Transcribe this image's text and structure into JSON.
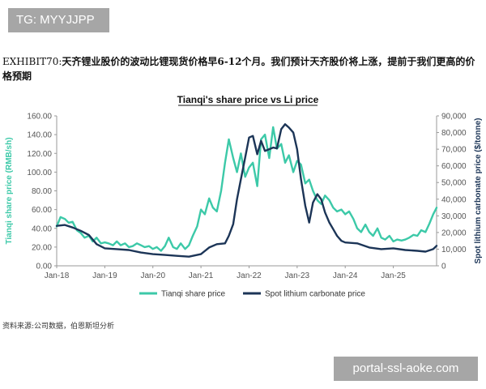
{
  "watermark_top": "TG: MYYJJPP",
  "watermark_bottom": "portal-ssl-aoke.com",
  "exhibit": {
    "prefix": "EXHIBIT70:",
    "text": "天齐锂业股价的波动比锂现货价格早6-12个月。我们预计天齐股价将上涨，提前于我们更高的价格预期"
  },
  "source": "资料来源:公司数据，伯恩斯坦分析",
  "colors": {
    "tianqi": "#3cc9a8",
    "lithium": "#1c3557",
    "axis_left": "#3cc9a8",
    "axis_right": "#1c3557"
  },
  "chart_data": {
    "type": "line",
    "title": "Tianqi's share price vs Li price",
    "x_ticks": [
      "Jan-18",
      "Jan-19",
      "Jan-20",
      "Jan-21",
      "Jan-22",
      "Jan-23",
      "Jan-24",
      "Jan-25"
    ],
    "xlim": [
      2018.0,
      2025.9
    ],
    "y_left": {
      "label": "Tianqi share price (RMB/sh)",
      "lim": [
        0,
        160
      ],
      "ticks": [
        "0.00",
        "20.00",
        "40.00",
        "60.00",
        "80.00",
        "100.00",
        "120.00",
        "140.00",
        "160.00"
      ]
    },
    "y_right": {
      "label": "Spot lithium carbonate price ($/tonne)",
      "lim": [
        0,
        90000
      ],
      "ticks": [
        "0",
        "10,000",
        "20,000",
        "30,000",
        "40,000",
        "50,000",
        "60,000",
        "70,000",
        "80,000",
        "90,000"
      ]
    },
    "legend_position": "bottom",
    "series": [
      {
        "name": "Tianqi share price",
        "axis": "left",
        "x": [
          2018.0,
          2018.08,
          2018.17,
          2018.25,
          2018.33,
          2018.42,
          2018.5,
          2018.58,
          2018.67,
          2018.75,
          2018.83,
          2018.92,
          2019.0,
          2019.08,
          2019.17,
          2019.25,
          2019.33,
          2019.42,
          2019.5,
          2019.58,
          2019.67,
          2019.75,
          2019.83,
          2019.92,
          2020.0,
          2020.08,
          2020.17,
          2020.25,
          2020.33,
          2020.42,
          2020.5,
          2020.58,
          2020.67,
          2020.75,
          2020.83,
          2020.92,
          2021.0,
          2021.08,
          2021.17,
          2021.25,
          2021.33,
          2021.42,
          2021.5,
          2021.58,
          2021.67,
          2021.75,
          2021.83,
          2021.92,
          2022.0,
          2022.08,
          2022.17,
          2022.25,
          2022.33,
          2022.42,
          2022.5,
          2022.58,
          2022.67,
          2022.75,
          2022.83,
          2022.92,
          2023.0,
          2023.08,
          2023.17,
          2023.25,
          2023.33,
          2023.42,
          2023.5,
          2023.58,
          2023.67,
          2023.75,
          2023.83,
          2023.92,
          2024.0,
          2024.08,
          2024.17,
          2024.25,
          2024.33,
          2024.42,
          2024.5,
          2024.58,
          2024.67,
          2024.75,
          2024.83,
          2024.92,
          2025.0,
          2025.08,
          2025.17,
          2025.25,
          2025.33,
          2025.42,
          2025.5,
          2025.58,
          2025.67,
          2025.75,
          2025.83,
          2025.9
        ],
        "y": [
          42,
          52,
          50,
          46,
          47,
          38,
          35,
          30,
          32,
          26,
          30,
          24,
          25,
          24,
          22,
          26,
          22,
          24,
          20,
          21,
          24,
          22,
          20,
          21,
          18,
          20,
          16,
          21,
          30,
          20,
          18,
          24,
          18,
          22,
          32,
          42,
          60,
          55,
          72,
          62,
          58,
          80,
          110,
          135,
          115,
          100,
          120,
          95,
          105,
          110,
          85,
          135,
          140,
          115,
          148,
          125,
          130,
          110,
          118,
          100,
          112,
          108,
          88,
          92,
          80,
          70,
          66,
          75,
          70,
          62,
          58,
          60,
          55,
          58,
          50,
          40,
          36,
          44,
          36,
          32,
          40,
          30,
          28,
          32,
          26,
          28,
          27,
          28,
          30,
          33,
          32,
          38,
          36,
          45,
          55,
          62
        ]
      },
      {
        "name": "Spot lithium carbonate price",
        "axis": "right",
        "x": [
          2018.0,
          2018.17,
          2018.33,
          2018.5,
          2018.67,
          2018.83,
          2019.0,
          2019.25,
          2019.5,
          2019.75,
          2020.0,
          2020.25,
          2020.5,
          2020.75,
          2021.0,
          2021.17,
          2021.33,
          2021.5,
          2021.58,
          2021.67,
          2021.75,
          2021.83,
          2021.92,
          2022.0,
          2022.08,
          2022.17,
          2022.25,
          2022.33,
          2022.42,
          2022.5,
          2022.58,
          2022.67,
          2022.75,
          2022.83,
          2022.92,
          2023.0,
          2023.08,
          2023.17,
          2023.25,
          2023.33,
          2023.42,
          2023.5,
          2023.58,
          2023.67,
          2023.75,
          2023.83,
          2023.92,
          2024.0,
          2024.25,
          2024.5,
          2024.75,
          2025.0,
          2025.25,
          2025.5,
          2025.67,
          2025.83,
          2025.9
        ],
        "y": [
          24000,
          24500,
          23000,
          21000,
          18500,
          13000,
          10500,
          10000,
          9500,
          8000,
          7000,
          6500,
          6000,
          5500,
          7000,
          11000,
          13000,
          13500,
          18000,
          25000,
          40000,
          52000,
          65000,
          77000,
          78000,
          67000,
          75000,
          69000,
          70000,
          71000,
          70500,
          82000,
          85000,
          83000,
          80000,
          70000,
          52000,
          36000,
          26000,
          38000,
          43000,
          40000,
          32000,
          26000,
          22000,
          18000,
          15000,
          14000,
          13500,
          11000,
          10000,
          10500,
          9500,
          9000,
          8500,
          10000,
          12000
        ]
      }
    ]
  }
}
